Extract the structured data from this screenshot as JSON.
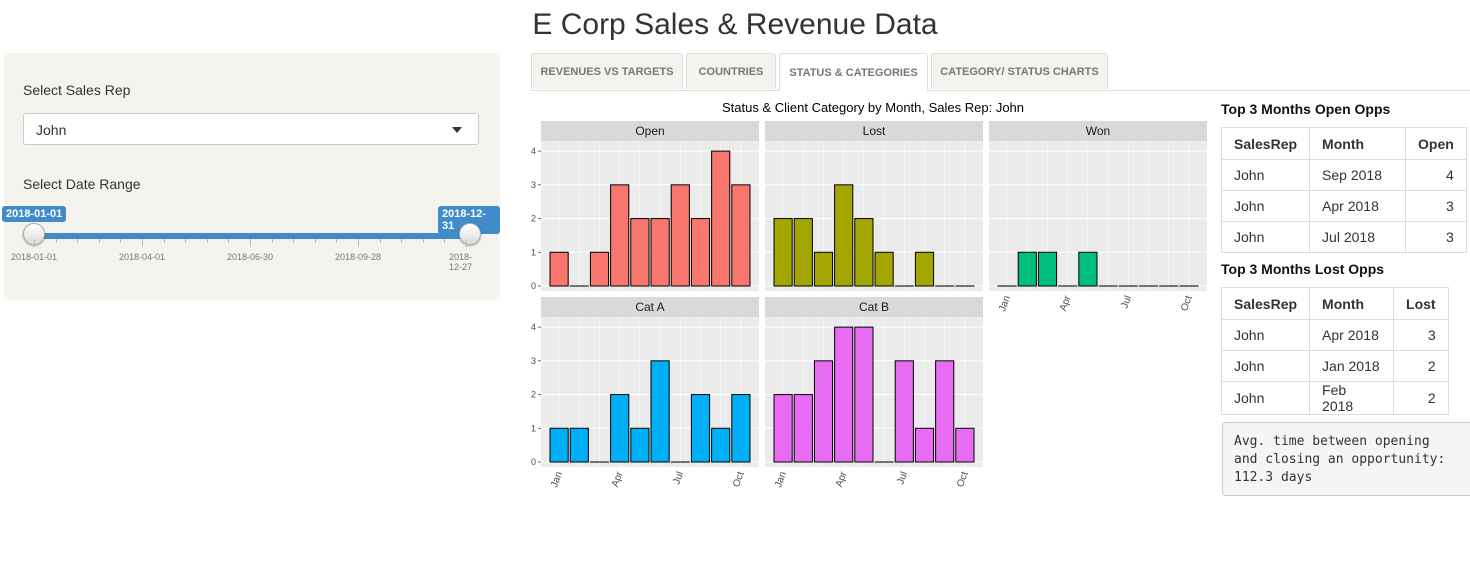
{
  "app": {
    "title": "E Corp Sales & Revenue Data"
  },
  "sidebar": {
    "sales_rep_label": "Select Sales Rep",
    "sales_rep_value": "John",
    "date_range_label": "Select Date Range",
    "date_from": "2018-01-01",
    "date_to": "2018-12-31",
    "ticks": [
      "2018-01-01",
      "2018-04-01",
      "2018-06-30",
      "2018-09-28",
      "2018-12-27"
    ]
  },
  "tabs": [
    {
      "label": "REVENUES VS TARGETS"
    },
    {
      "label": "COUNTRIES"
    },
    {
      "label": "STATUS & CATEGORIES",
      "active": true
    },
    {
      "label": "CATEGORY/ STATUS CHARTS"
    }
  ],
  "chart_data": {
    "type": "bar",
    "title": "Status & Client Category by Month, Sales Rep: John",
    "categories": [
      "Jan",
      "Feb",
      "Mar",
      "Apr",
      "May",
      "Jun",
      "Jul",
      "Aug",
      "Sep",
      "Oct"
    ],
    "x_tick_labels": [
      "Jan",
      "Apr",
      "Jul",
      "Oct"
    ],
    "ylim": [
      0,
      4.3
    ],
    "y_ticks": [
      0,
      1,
      2,
      3,
      4
    ],
    "panels": [
      {
        "name": "Open",
        "color": "#F8766D",
        "values": [
          1,
          0,
          1,
          3,
          2,
          2,
          3,
          2,
          4,
          3
        ]
      },
      {
        "name": "Lost",
        "color": "#A3A500",
        "values": [
          2,
          2,
          1,
          3,
          2,
          1,
          0,
          1,
          0,
          0
        ]
      },
      {
        "name": "Won",
        "color": "#00BF7D",
        "values": [
          0,
          1,
          1,
          0,
          1,
          0,
          0,
          0,
          0,
          0
        ]
      },
      {
        "name": "Cat A",
        "color": "#00B0F6",
        "values": [
          1,
          1,
          0,
          2,
          1,
          3,
          0,
          2,
          1,
          2
        ]
      },
      {
        "name": "Cat B",
        "color": "#E76BF3",
        "values": [
          2,
          2,
          3,
          4,
          4,
          0,
          3,
          1,
          3,
          1
        ]
      }
    ]
  },
  "open_table": {
    "title": "Top 3 Months Open Opps",
    "headers": [
      "SalesRep",
      "Month",
      "Open"
    ],
    "rows": [
      [
        "John",
        "Sep 2018",
        "4"
      ],
      [
        "John",
        "Apr 2018",
        "3"
      ],
      [
        "John",
        "Jul 2018",
        "3"
      ]
    ]
  },
  "lost_table": {
    "title": "Top 3 Months Lost Opps",
    "headers": [
      "SalesRep",
      "Month",
      "Lost"
    ],
    "rows": [
      [
        "John",
        "Apr 2018",
        "3"
      ],
      [
        "John",
        "Jan 2018",
        "2"
      ],
      [
        "John",
        "Feb 2018",
        "2"
      ]
    ]
  },
  "avg_text": "Avg. time between opening\nand closing an opportunity:\n112.3 days"
}
